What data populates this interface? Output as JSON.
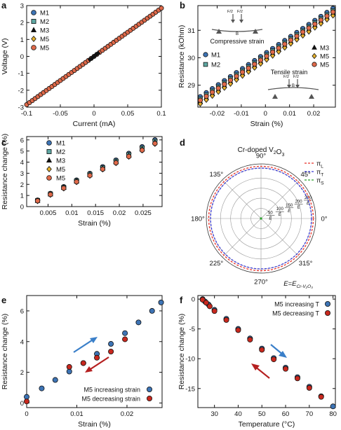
{
  "colors": {
    "M1": "#3d74b5",
    "M2": "#5ea8a3",
    "M3": "#111111",
    "M4": "#e6b12c",
    "M5": "#e06a4a",
    "inc": "#3d74b5",
    "dec": "#c8281e",
    "arrow_blue": "#3a7fc9",
    "arrow_red": "#b52020",
    "polar_L": "#e8332a",
    "polar_T": "#3a3ad6",
    "polar_S": "#2aa02a"
  },
  "panels": {
    "a": {
      "letter": "a"
    },
    "b": {
      "letter": "b",
      "inset_top_label": "Compressive strain",
      "inset_bottom_label": "Tensile strain",
      "force_label": "F",
      "force_half_label": "F/2",
      "beam_label": "B"
    },
    "c": {
      "letter": "c"
    },
    "d": {
      "letter": "d",
      "title": "Cr-doped V",
      "title_sub2": "2",
      "title_O": "O",
      "title_sub3": "3",
      "e_label": "E=E",
      "e_sub": "Cr-V₂O₃"
    },
    "e": {
      "letter": "e"
    },
    "f": {
      "letter": "f"
    }
  },
  "chart_data": [
    {
      "panel": "a",
      "type": "line",
      "xlabel": "Current (mA)",
      "ylabel": "Voltage (V)",
      "xlim": [
        -0.1,
        0.1
      ],
      "ylim": [
        -3,
        3
      ],
      "xticks": [
        "-0.1",
        "-0.05",
        "0",
        "0.05",
        "0.1"
      ],
      "yticks": [
        "-3",
        "-2",
        "-1",
        "0",
        "1",
        "2",
        "3"
      ],
      "legend_position": "left",
      "series": [
        {
          "name": "M1",
          "marker": "circle",
          "x": [
            -0.1,
            0.1
          ],
          "y": [
            -2.85,
            2.85
          ]
        },
        {
          "name": "M2",
          "marker": "square",
          "x": [
            -0.1,
            0.1
          ],
          "y": [
            -2.85,
            2.85
          ]
        },
        {
          "name": "M3",
          "marker": "triangle",
          "x": [
            -0.1,
            0.1
          ],
          "y": [
            -2.85,
            2.85
          ]
        },
        {
          "name": "M5",
          "marker": "diamond",
          "x": [
            -0.1,
            0.1
          ],
          "y": [
            -2.85,
            2.85
          ]
        },
        {
          "name": "M5",
          "marker": "circle",
          "x": [
            -0.1,
            0.1
          ],
          "y": [
            -2.85,
            2.85
          ]
        }
      ]
    },
    {
      "panel": "b",
      "type": "scatter",
      "xlabel": "Strain (%)",
      "ylabel": "Resistance (kOhm)",
      "xlim": [
        -0.028,
        0.029
      ],
      "ylim": [
        28.2,
        31.9
      ],
      "xticks": [
        "-0.02",
        "-0.01",
        "0",
        "0.01",
        "0.02"
      ],
      "yticks": [
        "29",
        "30",
        "31"
      ],
      "legend_position": "split",
      "series": [
        {
          "name": "M1",
          "marker": "circle",
          "offset": 0.18
        },
        {
          "name": "M2",
          "marker": "square",
          "offset": 0.1
        },
        {
          "name": "M3",
          "marker": "triangle",
          "offset": 0.0
        },
        {
          "name": "M5",
          "marker": "diamond",
          "offset": -0.08
        },
        {
          "name": "M5",
          "marker": "circle",
          "offset": 0.05
        }
      ],
      "base_x": [
        -0.027,
        -0.0245,
        -0.022,
        -0.0195,
        -0.017,
        -0.0145,
        -0.012,
        -0.0095,
        -0.007,
        -0.0045,
        -0.002,
        0.0005,
        0.003,
        0.0055,
        0.008,
        0.0105,
        0.013,
        0.0155,
        0.018,
        0.0205,
        0.023,
        0.0255,
        0.028
      ],
      "base_y_at_xmin": 28.4,
      "base_y_slope_per_pct": 58.5
    },
    {
      "panel": "c",
      "type": "scatter",
      "xlabel": "Strain (%)",
      "ylabel": "Resistance change (%)",
      "xlim": [
        0.0005,
        0.029
      ],
      "ylim": [
        0,
        6.3
      ],
      "xticks": [
        "0.005",
        "0.01",
        "0.015",
        "0.02",
        "0.025"
      ],
      "yticks": [
        "0",
        "1",
        "2",
        "3",
        "4",
        "5",
        "6"
      ],
      "legend_position": "top-left",
      "x": [
        0.0028,
        0.0055,
        0.0083,
        0.011,
        0.0138,
        0.0165,
        0.0193,
        0.022,
        0.0248,
        0.0275
      ],
      "series": [
        {
          "name": "M1",
          "marker": "circle",
          "values": [
            0.58,
            1.18,
            1.78,
            2.38,
            2.98,
            3.58,
            4.18,
            4.78,
            5.38,
            6.0
          ]
        },
        {
          "name": "M2",
          "marker": "square",
          "values": [
            0.55,
            1.14,
            1.73,
            2.32,
            2.91,
            3.5,
            4.09,
            4.68,
            5.27,
            5.88
          ]
        },
        {
          "name": "M3",
          "marker": "triangle",
          "values": [
            0.53,
            1.11,
            1.69,
            2.27,
            2.85,
            3.43,
            4.01,
            4.59,
            5.17,
            5.78
          ]
        },
        {
          "name": "M5",
          "marker": "diamond",
          "values": [
            0.5,
            1.07,
            1.64,
            2.21,
            2.78,
            3.35,
            3.92,
            4.49,
            5.06,
            5.65
          ]
        },
        {
          "name": "M5",
          "marker": "circle",
          "values": [
            0.52,
            1.09,
            1.66,
            2.23,
            2.8,
            3.37,
            3.94,
            4.51,
            5.08,
            5.68
          ]
        }
      ]
    },
    {
      "panel": "d",
      "type": "polar",
      "angle_labels": [
        "0°",
        "45°",
        "90°",
        "135°",
        "180°",
        "225°",
        "270°",
        "315°"
      ],
      "radial_ticks": [
        "50",
        "100",
        "150",
        "200",
        "250"
      ],
      "radial_unit": "E",
      "rmax": 270,
      "legend_position": "top-right",
      "series": [
        {
          "name": "π",
          "sub": "L",
          "radius": 258
        },
        {
          "name": "π",
          "sub": "T",
          "radius": 249
        },
        {
          "name": "π",
          "sub": "S",
          "radius": 0
        }
      ]
    },
    {
      "panel": "e",
      "type": "scatter",
      "xlabel": "Strain (%)",
      "ylabel": "Resistance change (%)",
      "xlim": [
        0,
        0.027
      ],
      "ylim": [
        -0.3,
        7
      ],
      "xticks": [
        "0",
        "0.01",
        "0.02"
      ],
      "yticks": [
        "0",
        "2",
        "4",
        "6"
      ],
      "legend_position": "bottom-right",
      "series": [
        {
          "name": "M5 increasing strain",
          "x": [
            0,
            0.003,
            0.0057,
            0.0085,
            0.0113,
            0.014,
            0.0168,
            0.0196,
            0.0223,
            0.025,
            0.0268
          ],
          "values": [
            0.4,
            0.95,
            1.5,
            2.05,
            2.6,
            3.2,
            3.85,
            4.55,
            5.25,
            6.0,
            6.55
          ]
        },
        {
          "name": "M5 decreasing strain",
          "x": [
            0,
            0.0085,
            0.0113,
            0.014,
            0.0168,
            0.0196
          ],
          "values": [
            0.1,
            2.35,
            2.6,
            2.95,
            3.35,
            4.15
          ]
        }
      ]
    },
    {
      "panel": "f",
      "type": "scatter",
      "xlabel": "Temperature (°C)",
      "ylabel": "Resistance change (%)",
      "xlim": [
        23,
        81
      ],
      "ylim": [
        -18.2,
        0.6
      ],
      "xticks": [
        "30",
        "40",
        "50",
        "60",
        "70",
        "80"
      ],
      "yticks": [
        "0",
        "-5",
        "-10",
        "-15"
      ],
      "legend_position": "top-right",
      "series": [
        {
          "name": "M5 increasing T",
          "x": [
            25,
            26,
            27.5,
            30,
            35,
            40,
            45,
            50,
            55,
            60,
            65,
            70,
            75,
            80
          ],
          "values": [
            0,
            -0.4,
            -0.9,
            -1.8,
            -3.3,
            -5.0,
            -6.6,
            -8.3,
            -9.9,
            -11.5,
            -13.1,
            -14.7,
            -16.3,
            -18.0
          ]
        },
        {
          "name": "M5 decreasing T",
          "x": [
            25,
            26.5,
            28,
            30,
            35,
            40,
            45,
            50,
            55,
            60,
            65,
            70,
            75
          ],
          "values": [
            -0.1,
            -0.6,
            -1.2,
            -2.0,
            -3.5,
            -5.2,
            -6.8,
            -8.5,
            -10.1,
            -11.7,
            -13.3,
            -14.9,
            -16.4
          ]
        }
      ]
    }
  ]
}
